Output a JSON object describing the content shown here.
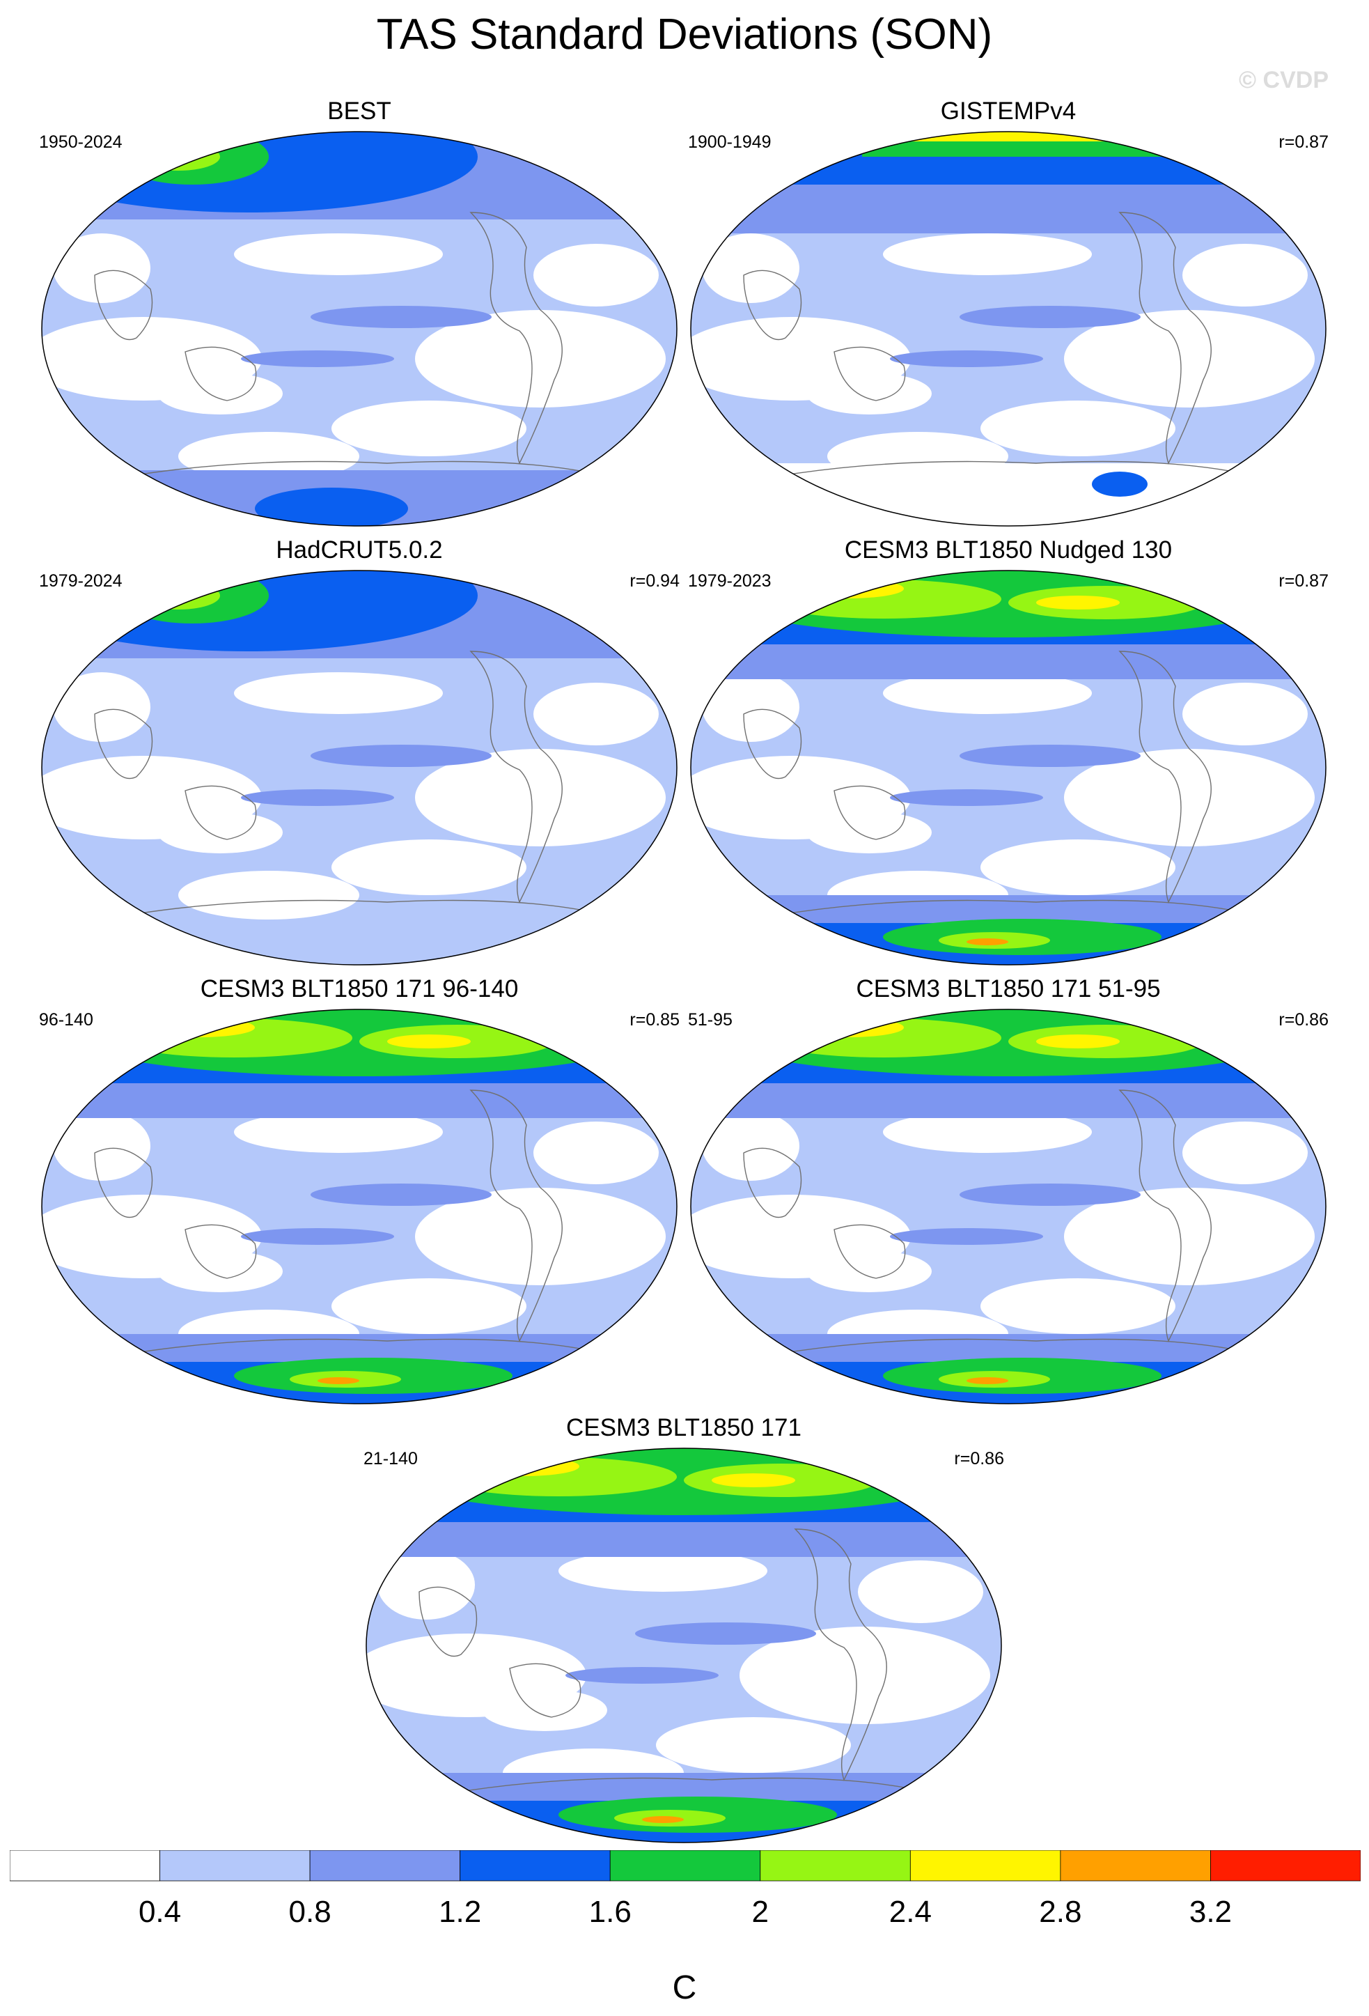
{
  "title": "TAS Standard Deviations (SON)",
  "watermark": "© CVDP",
  "panels": [
    {
      "title": "BEST",
      "years": "1950-2024",
      "corr": ""
    },
    {
      "title": "GISTEMPv4",
      "years": "1900-1949",
      "corr": "r=0.87"
    },
    {
      "title": "HadCRUT5.0.2",
      "years": "1979-2024",
      "corr": "r=0.94"
    },
    {
      "title": "CESM3 BLT1850 Nudged 130",
      "years": "1979-2023",
      "corr": "r=0.87"
    },
    {
      "title": "CESM3 BLT1850 171 96-140",
      "years": "96-140",
      "corr": "r=0.85"
    },
    {
      "title": "CESM3 BLT1850 171 51-95",
      "years": "51-95",
      "corr": "r=0.86"
    },
    {
      "title": "CESM3 BLT1850 171",
      "years": "21-140",
      "corr": "r=0.86"
    }
  ],
  "colorbar": {
    "colors": [
      "#ffffff",
      "#b4c8fa",
      "#7d96f0",
      "#0a5ff0",
      "#14c83c",
      "#96f514",
      "#fff500",
      "#ffa000",
      "#ff1e00"
    ],
    "labels": [
      "0.4",
      "0.8",
      "1.2",
      "1.6",
      "2",
      "2.4",
      "2.8",
      "3.2"
    ],
    "units": "C"
  },
  "colors": {
    "land_outline": "#707070",
    "map_border": "#000000"
  }
}
